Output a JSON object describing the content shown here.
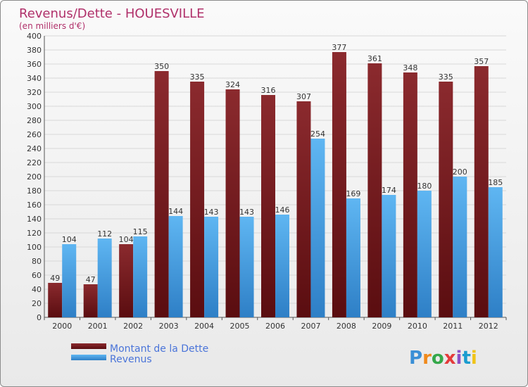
{
  "chart_data": {
    "type": "bar",
    "title": "Revenus/Dette - HOUESVILLE",
    "subtitle": "(en milliers d'€)",
    "categories": [
      "2000",
      "2001",
      "2002",
      "2003",
      "2004",
      "2005",
      "2006",
      "2007",
      "2008",
      "2009",
      "2010",
      "2011",
      "2012"
    ],
    "series": [
      {
        "name": "Montant de la Dette",
        "color": "#7a1f22",
        "values": [
          49,
          47,
          104,
          350,
          335,
          324,
          316,
          307,
          377,
          361,
          348,
          335,
          357
        ]
      },
      {
        "name": "Revenus",
        "color": "#4aa3e6",
        "values": [
          104,
          112,
          115,
          144,
          143,
          143,
          146,
          254,
          169,
          174,
          180,
          200,
          185
        ]
      }
    ],
    "ylim": [
      0,
      400
    ],
    "ytick_step": 20,
    "grid": true,
    "legend": "bottom-left"
  },
  "branding": {
    "logo_text": "Proxiti",
    "logo_colors": [
      "#3a8fd6",
      "#f08a1c",
      "#35a84a",
      "#e43b3b",
      "#8c4fc7",
      "#1a9ccf",
      "#f0c419"
    ]
  }
}
